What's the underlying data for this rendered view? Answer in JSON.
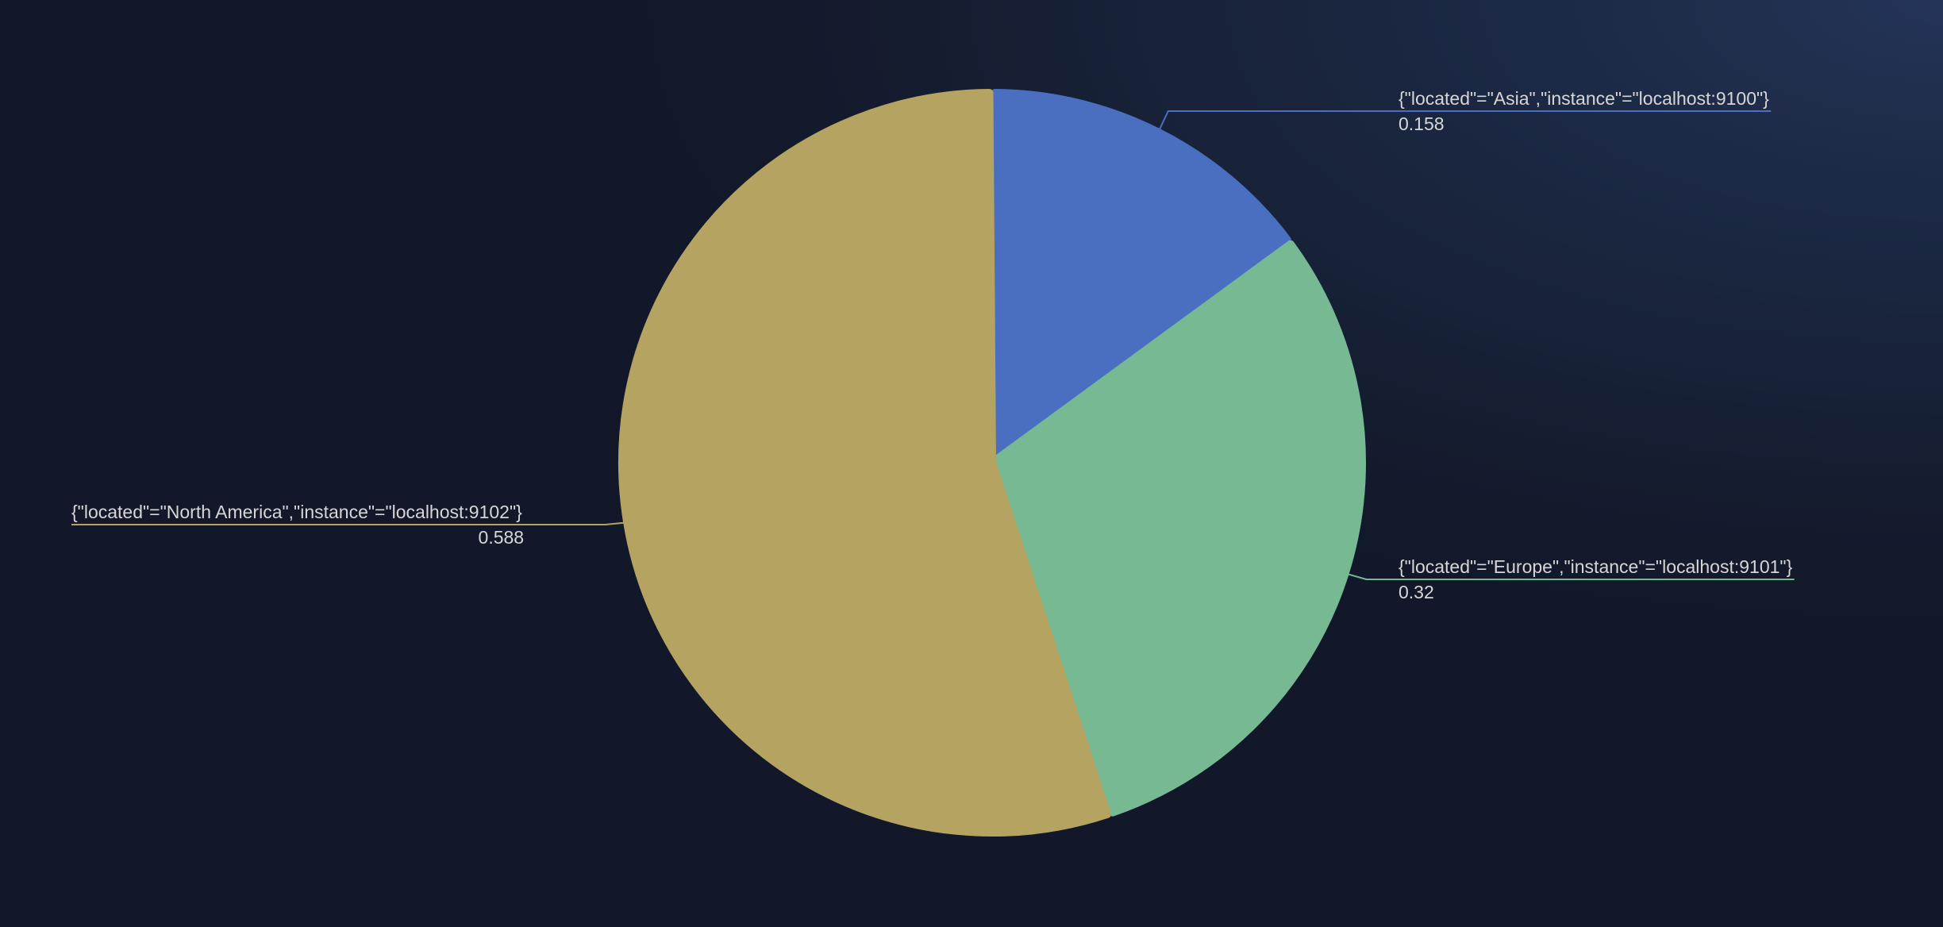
{
  "chart_data": {
    "type": "pie",
    "slices": [
      {
        "label": "{\"located\"=\"Asia\",\"instance\"=\"localhost:9100\"}",
        "value": 0.158,
        "value_label": "0.158",
        "color": "#4a6fc1",
        "label_side": "right"
      },
      {
        "label": "{\"located\"=\"Europe\",\"instance\"=\"localhost:9101\"}",
        "value": 0.32,
        "value_label": "0.32",
        "color": "#76b993",
        "label_side": "right"
      },
      {
        "label": "{\"located\"=\"North America\",\"instance\"=\"localhost:9102\"}",
        "value": 0.588,
        "value_label": "0.588",
        "color": "#b5a461",
        "label_side": "left"
      }
    ],
    "start_angle": "top",
    "direction": "clockwise",
    "legend": "none",
    "title": ""
  },
  "theme": {
    "background": "#121829",
    "glow": "#243457",
    "label_color": "#d6d6d6"
  }
}
